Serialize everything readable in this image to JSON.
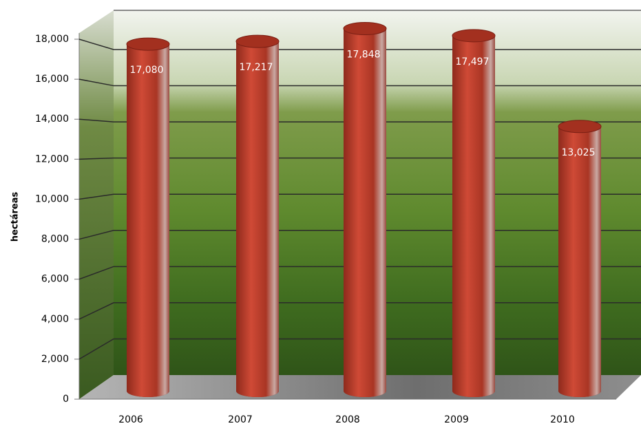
{
  "chart_data": {
    "type": "bar3d",
    "y_label": "hectáreas",
    "categories": [
      "2006",
      "2007",
      "2008",
      "2009",
      "2010"
    ],
    "values": [
      17080,
      17217,
      17848,
      17497,
      13025
    ],
    "value_labels": [
      "17,080",
      "17,217",
      "17,848",
      "17,497",
      "13,025"
    ],
    "color": "#c0392b",
    "ylim": [
      0,
      18000
    ],
    "yticks": [
      0,
      {
        "value": 2000,
        "label": "2,000"
      },
      {
        "value": 4000,
        "label": "4,000"
      },
      {
        "value": 6000,
        "label": "6,000"
      },
      {
        "value": 8000,
        "label": "8,000"
      },
      {
        "value": 10000,
        "label": "10,000"
      },
      {
        "value": 12000,
        "label": "12,000"
      },
      {
        "value": 14000,
        "label": "14,000"
      },
      {
        "value": 16000,
        "label": "16,000"
      },
      {
        "value": 18000,
        "label": "18,000"
      }
    ],
    "grid": true
  }
}
